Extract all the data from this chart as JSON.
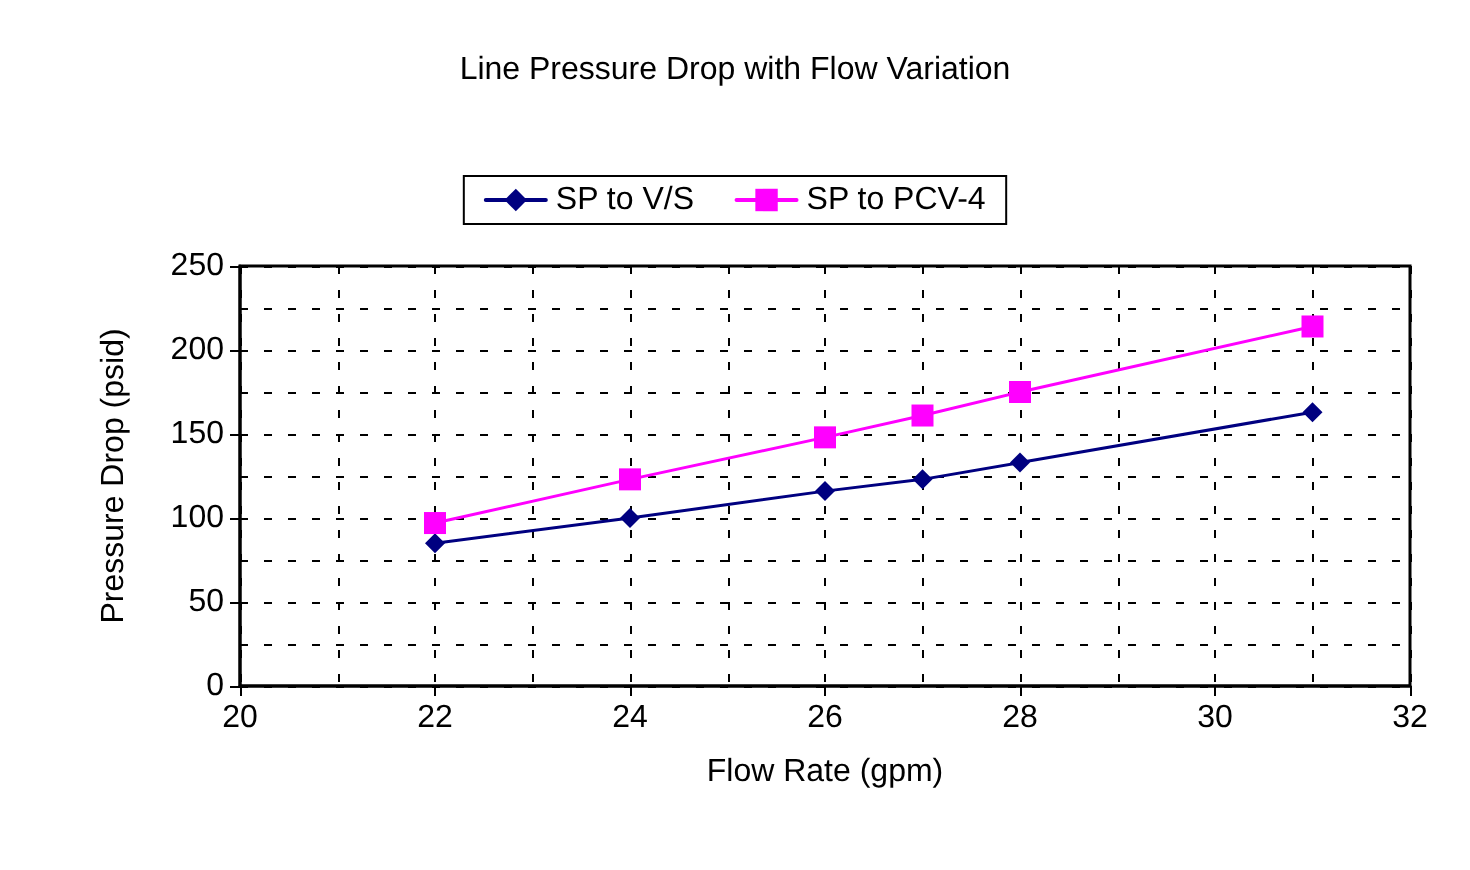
{
  "chart_data": {
    "type": "line",
    "title": "Line Pressure Drop with Flow Variation",
    "xlabel": "Flow Rate (gpm)",
    "ylabel": "Pressure Drop (psid)",
    "x": [
      22,
      24,
      26,
      27,
      28,
      31
    ],
    "series": [
      {
        "name": "SP to V/S",
        "color": "#000080",
        "marker": "diamond",
        "values": [
          85,
          100,
          116,
          123,
          133,
          163
        ]
      },
      {
        "name": "SP to PCV-4",
        "color": "#ff00ff",
        "marker": "square",
        "values": [
          97,
          123,
          148,
          161,
          175,
          214
        ]
      }
    ],
    "xlim": [
      20,
      32
    ],
    "xticks": [
      20,
      22,
      24,
      26,
      28,
      30,
      32
    ],
    "ylim": [
      0,
      250
    ],
    "yticks": [
      0,
      50,
      100,
      150,
      200,
      250
    ],
    "grid": true,
    "legend": "top",
    "line_style": "solid"
  }
}
